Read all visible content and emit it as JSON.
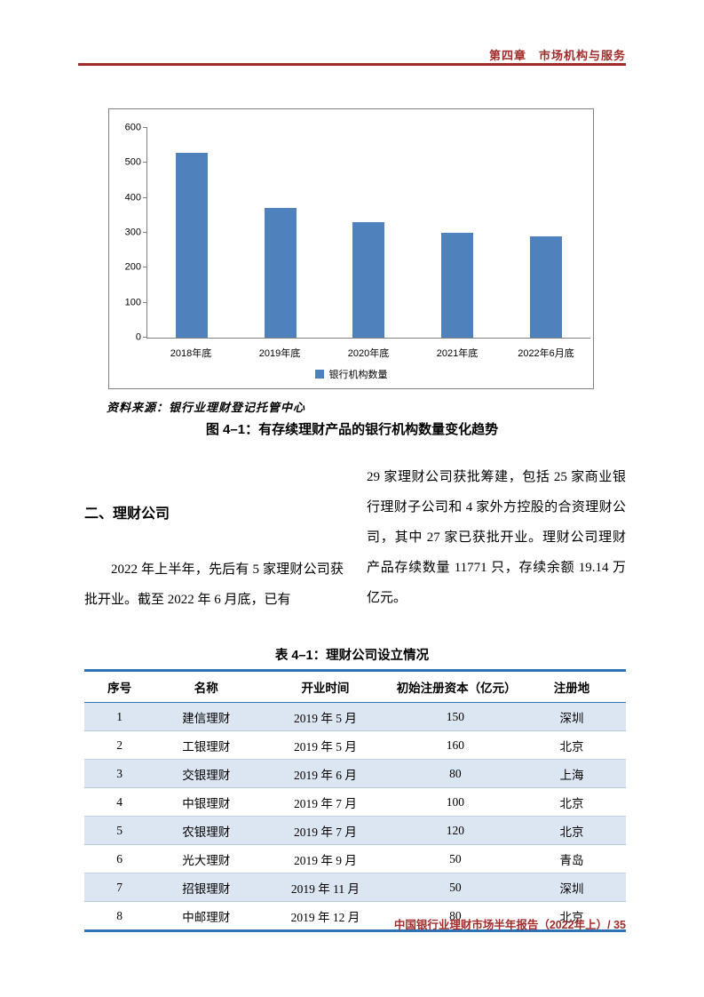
{
  "header": {
    "chapter": "第四章　市场机构与服务"
  },
  "chart_data": {
    "type": "bar",
    "title": "",
    "categories": [
      "2018年底",
      "2019年底",
      "2020年底",
      "2021年底",
      "2022年6月底"
    ],
    "values": [
      528,
      370,
      330,
      301,
      291
    ],
    "legend": "银行机构数量",
    "xlabel": "",
    "ylabel": "",
    "ylim": [
      0,
      600
    ],
    "yticks": [
      0,
      100,
      200,
      300,
      400,
      500,
      600
    ],
    "grid": false,
    "legend_position": "bottom",
    "bar_color": "#4f81bd"
  },
  "figure": {
    "source": "资料来源：银行业理财登记托管中心",
    "caption": "图 4–1：有存续理财产品的银行机构数量变化趋势"
  },
  "section": {
    "heading": "二、理财公司",
    "left_paragraph": "2022 年上半年，先后有 5 家理财公司获批开业。截至 2022 年 6 月底，已有",
    "right_paragraph": "29 家理财公司获批筹建，包括 25 家商业银行理财子公司和 4 家外方控股的合资理财公司，其中 27 家已获批开业。理财公司理财产品存续数量 11771 只，存续余额 19.14 万亿元。"
  },
  "table": {
    "caption": "表 4–1：理财公司设立情况",
    "headers": [
      "序号",
      "名称",
      "开业时间",
      "初始注册资本（亿元）",
      "注册地"
    ],
    "rows": [
      [
        "1",
        "建信理财",
        "2019 年 5 月",
        "150",
        "深圳"
      ],
      [
        "2",
        "工银理财",
        "2019 年 5 月",
        "160",
        "北京"
      ],
      [
        "3",
        "交银理财",
        "2019 年 6 月",
        "80",
        "上海"
      ],
      [
        "4",
        "中银理财",
        "2019 年 7 月",
        "100",
        "北京"
      ],
      [
        "5",
        "农银理财",
        "2019 年 7 月",
        "120",
        "北京"
      ],
      [
        "6",
        "光大理财",
        "2019 年 9 月",
        "50",
        "青岛"
      ],
      [
        "7",
        "招银理财",
        "2019 年 11 月",
        "50",
        "深圳"
      ],
      [
        "8",
        "中邮理财",
        "2019 年 12 月",
        "80",
        "北京"
      ]
    ]
  },
  "footer": {
    "text": "中国银行业理财市场半年报告（2022年上）/ 35"
  },
  "colors": {
    "accent_red": "#a02c2a",
    "bar_blue": "#4f81bd",
    "table_border_blue": "#2e74b5",
    "row_shade": "#dce6f2"
  }
}
